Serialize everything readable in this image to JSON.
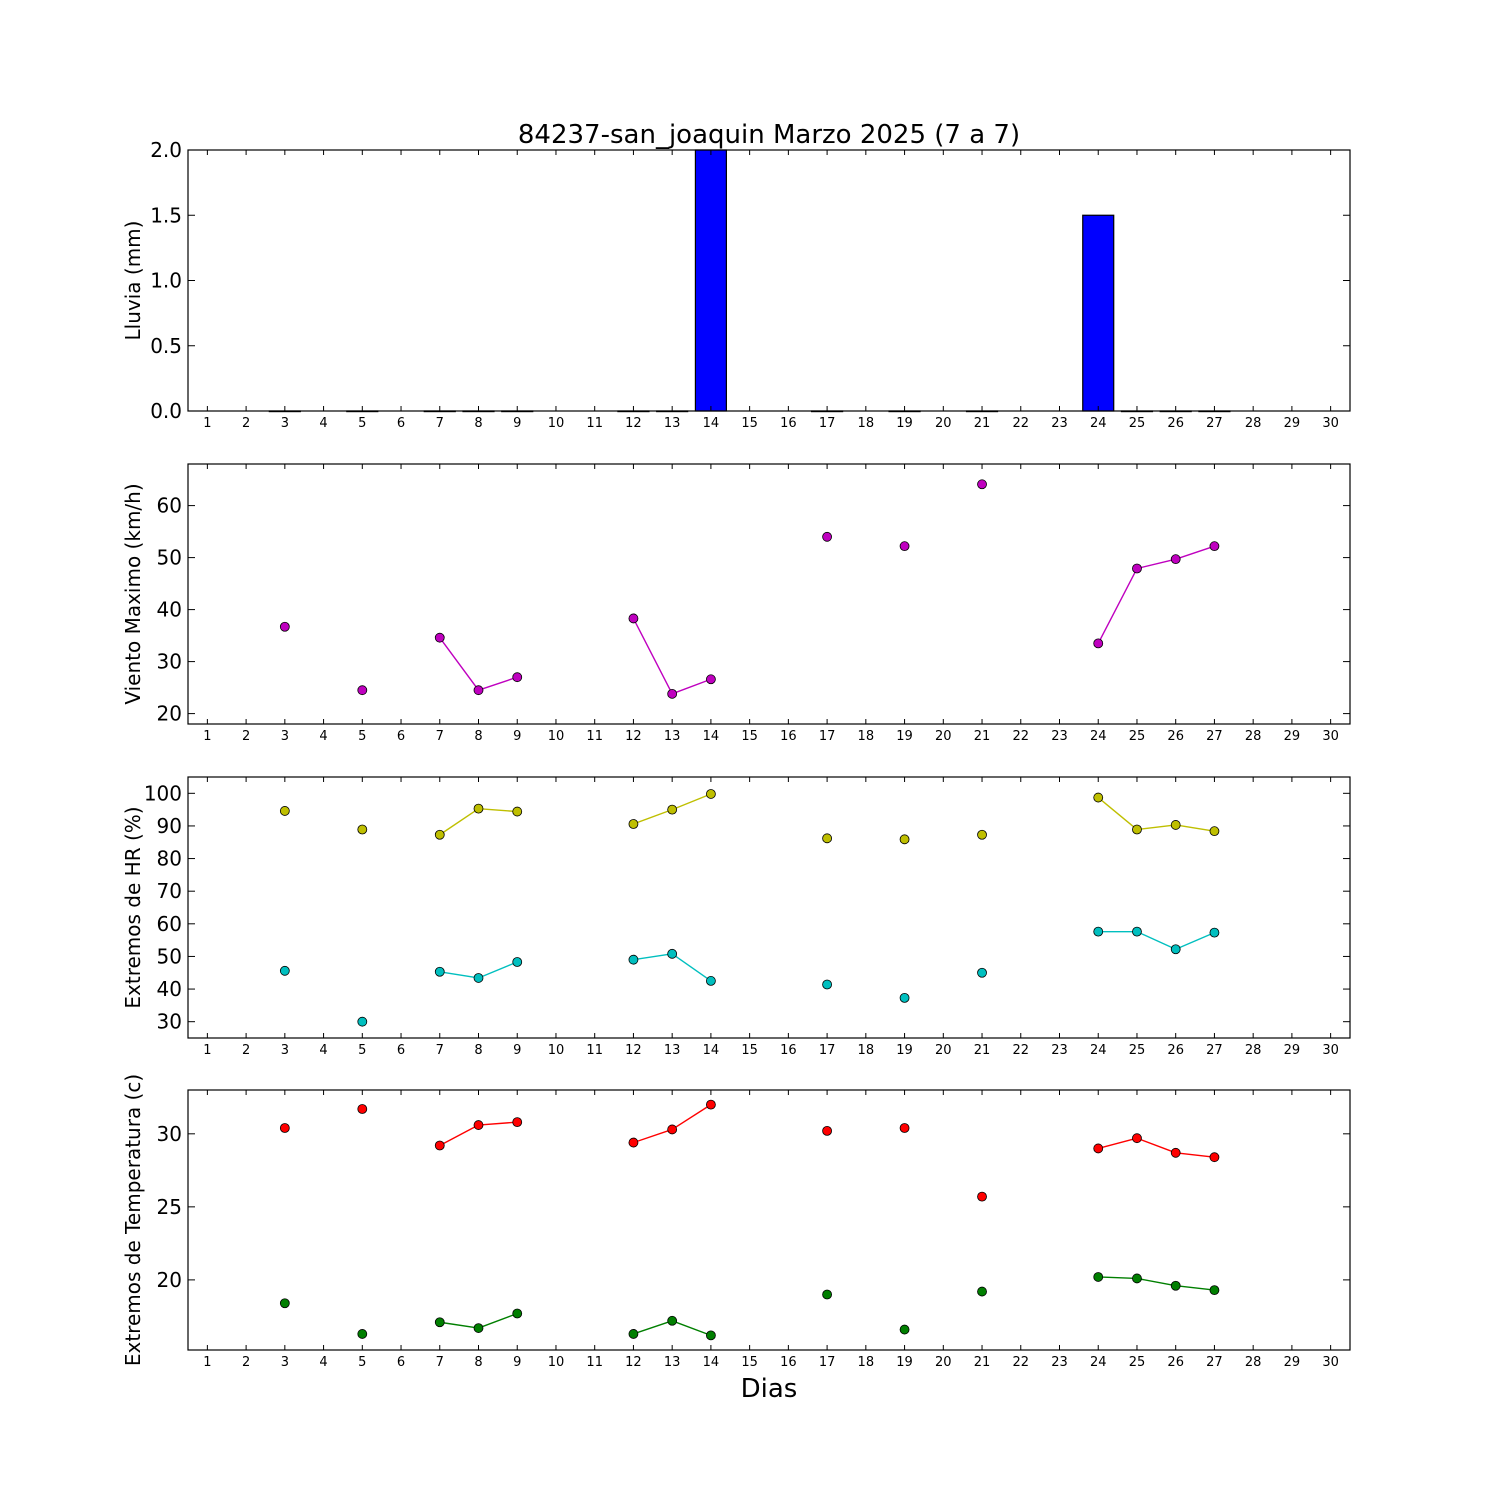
{
  "figure": {
    "title": "84237-san_joaquin Marzo 2025  (7 a 7)",
    "xlabel": "Dias"
  },
  "chart_data": [
    {
      "type": "bar",
      "ylabel": "Lluvia (mm)",
      "xlim": [
        0.5,
        30.5
      ],
      "ylim": [
        0,
        2.0
      ],
      "yticks": [
        0.0,
        0.5,
        1.0,
        1.5,
        2.0
      ],
      "ytick_labels": [
        "0.0",
        "0.5",
        "1.0",
        "1.5",
        "2.0"
      ],
      "xticks": [
        1,
        2,
        3,
        4,
        5,
        6,
        7,
        8,
        9,
        10,
        11,
        12,
        13,
        14,
        15,
        16,
        17,
        18,
        19,
        20,
        21,
        22,
        23,
        24,
        25,
        26,
        27,
        28,
        29,
        30
      ],
      "bar_color": "#0000ff",
      "bars": [
        {
          "day": 3,
          "value": 0
        },
        {
          "day": 5,
          "value": 0
        },
        {
          "day": 7,
          "value": 0
        },
        {
          "day": 8,
          "value": 0
        },
        {
          "day": 9,
          "value": 0
        },
        {
          "day": 12,
          "value": 0
        },
        {
          "day": 13,
          "value": 0
        },
        {
          "day": 14,
          "value": 2.0
        },
        {
          "day": 17,
          "value": 0
        },
        {
          "day": 19,
          "value": 0
        },
        {
          "day": 21,
          "value": 0
        },
        {
          "day": 24,
          "value": 1.5
        },
        {
          "day": 25,
          "value": 0
        },
        {
          "day": 26,
          "value": 0
        },
        {
          "day": 27,
          "value": 0
        }
      ]
    },
    {
      "type": "line",
      "ylabel": "Viento Maximo (km/h)",
      "xlim": [
        0.5,
        30.5
      ],
      "ylim": [
        18,
        68
      ],
      "yticks": [
        20,
        30,
        40,
        50,
        60
      ],
      "ytick_labels": [
        "20",
        "30",
        "40",
        "50",
        "60"
      ],
      "xticks": [
        1,
        2,
        3,
        4,
        5,
        6,
        7,
        8,
        9,
        10,
        11,
        12,
        13,
        14,
        15,
        16,
        17,
        18,
        19,
        20,
        21,
        22,
        23,
        24,
        25,
        26,
        27,
        28,
        29,
        30
      ],
      "series": [
        {
          "color": "#bf00bf",
          "x": [
            3,
            5,
            7,
            8,
            9,
            12,
            13,
            14,
            17,
            19,
            21,
            24,
            25,
            26,
            27
          ],
          "y": [
            36.7,
            24.5,
            34.6,
            24.5,
            27.0,
            38.3,
            23.8,
            26.6,
            54.0,
            52.2,
            64.1,
            33.5,
            47.9,
            49.7,
            52.2
          ]
        }
      ]
    },
    {
      "type": "line",
      "ylabel": "Extremos de HR (%)",
      "xlim": [
        0.5,
        30.5
      ],
      "ylim": [
        25,
        105
      ],
      "yticks": [
        30,
        40,
        50,
        60,
        70,
        80,
        90,
        100
      ],
      "ytick_labels": [
        "30",
        "40",
        "50",
        "60",
        "70",
        "80",
        "90",
        "100"
      ],
      "xticks": [
        1,
        2,
        3,
        4,
        5,
        6,
        7,
        8,
        9,
        10,
        11,
        12,
        13,
        14,
        15,
        16,
        17,
        18,
        19,
        20,
        21,
        22,
        23,
        24,
        25,
        26,
        27,
        28,
        29,
        30
      ],
      "series": [
        {
          "color": "#bfbf00",
          "x": [
            3,
            5,
            7,
            8,
            9,
            12,
            13,
            14,
            17,
            19,
            21,
            24,
            25,
            26,
            27
          ],
          "y": [
            94.6,
            88.9,
            87.3,
            95.3,
            94.4,
            90.6,
            95.0,
            99.8,
            86.2,
            85.9,
            87.3,
            98.7,
            88.9,
            90.3,
            88.4
          ]
        },
        {
          "color": "#00bfbf",
          "x": [
            3,
            5,
            7,
            8,
            9,
            12,
            13,
            14,
            17,
            19,
            21,
            24,
            25,
            26,
            27
          ],
          "y": [
            45.6,
            30.0,
            45.3,
            43.4,
            48.3,
            49.0,
            50.8,
            42.5,
            41.4,
            37.3,
            45.0,
            57.6,
            57.6,
            52.2,
            57.3
          ]
        }
      ]
    },
    {
      "type": "line",
      "ylabel": "Extremos de Temperatura (c)",
      "xlim": [
        0.5,
        30.5
      ],
      "ylim": [
        15.2,
        33.0
      ],
      "yticks": [
        20,
        25,
        30
      ],
      "ytick_labels": [
        "20",
        "25",
        "30"
      ],
      "xticks": [
        1,
        2,
        3,
        4,
        5,
        6,
        7,
        8,
        9,
        10,
        11,
        12,
        13,
        14,
        15,
        16,
        17,
        18,
        19,
        20,
        21,
        22,
        23,
        24,
        25,
        26,
        27,
        28,
        29,
        30
      ],
      "series": [
        {
          "color": "#ff0000",
          "x": [
            3,
            5,
            7,
            8,
            9,
            12,
            13,
            14,
            17,
            19,
            21,
            24,
            25,
            26,
            27
          ],
          "y": [
            30.4,
            31.7,
            29.2,
            30.6,
            30.8,
            29.4,
            30.3,
            32.0,
            30.2,
            30.4,
            25.7,
            29.0,
            29.7,
            28.7,
            28.4
          ]
        },
        {
          "color": "#007f00",
          "x": [
            3,
            5,
            7,
            8,
            9,
            12,
            13,
            14,
            17,
            19,
            21,
            24,
            25,
            26,
            27
          ],
          "y": [
            18.4,
            16.3,
            17.1,
            16.7,
            17.7,
            16.3,
            17.2,
            16.2,
            19.0,
            16.6,
            19.2,
            20.2,
            20.1,
            19.6,
            19.3
          ]
        }
      ]
    }
  ]
}
